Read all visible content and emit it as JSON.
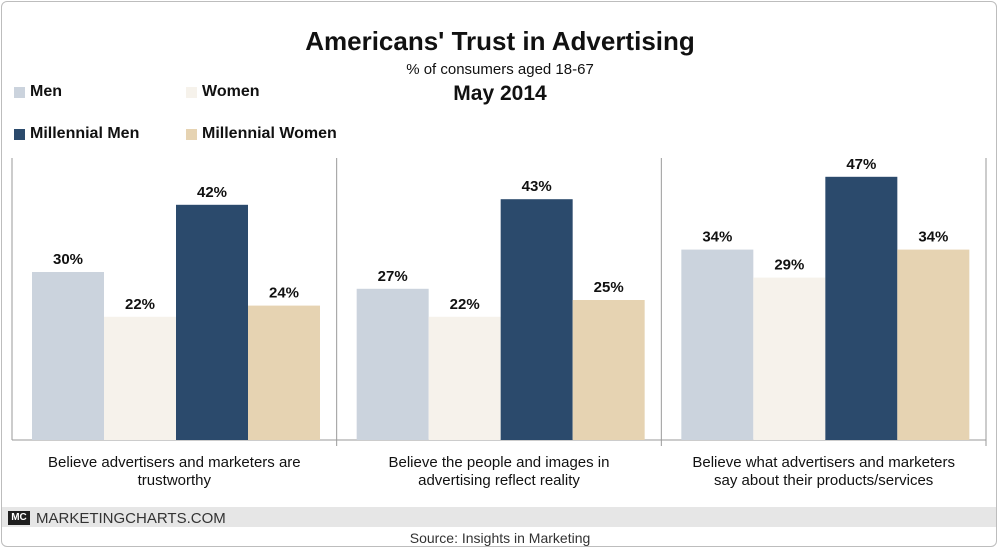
{
  "header": {
    "title": "Americans' Trust in Advertising",
    "subtitle": "% of consumers aged 18-67",
    "date": "May 2014"
  },
  "footer": {
    "badge": "MC",
    "brand": "MARKETINGCHARTS.COM",
    "source": "Source: Insights in Marketing"
  },
  "colors": {
    "men": "#cbd3dd",
    "women": "#f6f2eb",
    "millennial_men": "#2b4a6c",
    "millennial_women": "#e6d3b2"
  },
  "chart_data": {
    "type": "bar",
    "title": "Americans' Trust in Advertising",
    "subtitle": "% of consumers aged 18-67",
    "categories": [
      "Believe advertisers and marketers are trustworthy",
      "Believe the people and images in advertising reflect reality",
      "Believe what advertisers and marketers say about their products/services"
    ],
    "category_lines": [
      [
        "Believe advertisers and marketers are",
        "trustworthy"
      ],
      [
        "Believe the people and images in",
        "advertising reflect reality"
      ],
      [
        "Believe what advertisers and marketers",
        "say about their products/services"
      ]
    ],
    "series": [
      {
        "name": "Men",
        "color": "#cbd3dd",
        "values": [
          30,
          27,
          34
        ],
        "labels": [
          "30%",
          "27%",
          "34%"
        ]
      },
      {
        "name": "Women",
        "color": "#f6f2eb",
        "values": [
          22,
          22,
          29
        ],
        "labels": [
          "22%",
          "22%",
          "29%"
        ]
      },
      {
        "name": "Millennial Men",
        "color": "#2b4a6c",
        "values": [
          42,
          43,
          47
        ],
        "labels": [
          "42%",
          "43%",
          "47%"
        ]
      },
      {
        "name": "Millennial Women",
        "color": "#e6d3b2",
        "values": [
          24,
          25,
          34
        ],
        "labels": [
          "24%",
          "25%",
          "34%"
        ]
      }
    ],
    "ylim": [
      0,
      50
    ],
    "legend": "top-left",
    "grid": false
  }
}
